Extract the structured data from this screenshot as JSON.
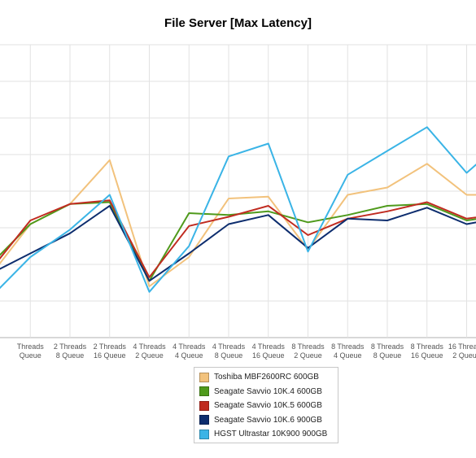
{
  "chart_data": {
    "type": "line",
    "title": "File Server [Max Latency]",
    "xlabel": "",
    "ylabel": "",
    "grid": true,
    "legend_position": "bottom",
    "categories": [
      [
        "2 Threads",
        "2 Queue"
      ],
      [
        "2 Threads",
        "4 Queue"
      ],
      [
        "2 Threads",
        "8 Queue"
      ],
      [
        "2 Threads",
        "16 Queue"
      ],
      [
        "4 Threads",
        "2 Queue"
      ],
      [
        "4 Threads",
        "4 Queue"
      ],
      [
        "4 Threads",
        "8 Queue"
      ],
      [
        "4 Threads",
        "16 Queue"
      ],
      [
        "8 Threads",
        "2 Queue"
      ],
      [
        "8 Threads",
        "4 Queue"
      ],
      [
        "8 Threads",
        "8 Queue"
      ],
      [
        "8 Threads",
        "16 Queue"
      ],
      [
        "16 Threads",
        "2 Queue"
      ],
      [
        "16 Threads",
        "4 Queue"
      ]
    ],
    "visible_tick_labels": [
      [
        "Threads",
        "Queue"
      ],
      [
        "2 Threads",
        "8 Queue"
      ],
      [
        "2 Threads",
        "16 Queue"
      ],
      [
        "4 Threads",
        "2 Queue"
      ],
      [
        "4 Threads",
        "4 Queue"
      ],
      [
        "4 Threads",
        "8 Queue"
      ],
      [
        "4 Threads",
        "16 Queue"
      ],
      [
        "8 Threads",
        "2 Queue"
      ],
      [
        "8 Threads",
        "4 Queue"
      ],
      [
        "8 Threads",
        "8 Queue"
      ],
      [
        "8 Threads",
        "16 Queue"
      ],
      [
        "16 Threads",
        "2 Queue"
      ],
      [
        "16",
        ""
      ]
    ],
    "ylim": [
      0,
      8
    ],
    "series": [
      {
        "name": "Toshiba MBF2600RC 600GB",
        "color": "#f2c27c",
        "values": [
          1.7,
          3.1,
          3.65,
          4.85,
          1.4,
          2.2,
          3.8,
          3.85,
          2.4,
          3.9,
          4.1,
          4.75,
          3.9,
          3.9
        ]
      },
      {
        "name": "Seagate Savvio 10K.4 600GB",
        "color": "#4f9a1c",
        "values": [
          2.0,
          3.1,
          3.65,
          3.7,
          1.55,
          3.4,
          3.35,
          3.45,
          3.15,
          3.35,
          3.6,
          3.65,
          3.2,
          3.35
        ]
      },
      {
        "name": "Seagate Savvio 10K.5 600GB",
        "color": "#c02b20",
        "values": [
          1.85,
          3.2,
          3.65,
          3.75,
          1.65,
          3.05,
          3.3,
          3.6,
          2.8,
          3.25,
          3.45,
          3.7,
          3.25,
          3.4
        ]
      },
      {
        "name": "Seagate Savvio 10K.6 900GB",
        "color": "#0d2d6e",
        "values": [
          1.75,
          2.3,
          2.85,
          3.6,
          1.55,
          2.3,
          3.1,
          3.35,
          2.45,
          3.25,
          3.2,
          3.55,
          3.1,
          3.3
        ]
      },
      {
        "name": "HGST Ultrastar 10K900 900GB",
        "color": "#3ab4e6",
        "values": [
          1.1,
          2.2,
          2.95,
          3.9,
          1.25,
          2.5,
          4.95,
          5.3,
          2.35,
          4.45,
          5.1,
          5.75,
          4.5,
          5.45
        ]
      }
    ]
  }
}
